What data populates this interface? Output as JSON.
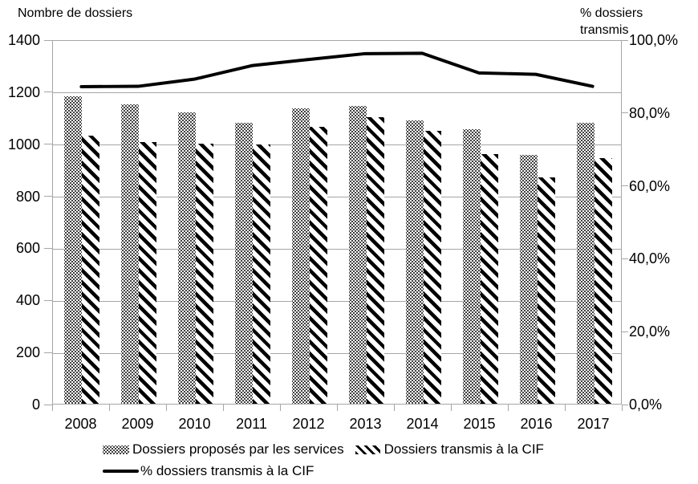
{
  "chart_data": {
    "type": "bar",
    "subtype": "combo-bar-line",
    "categories": [
      "2008",
      "2009",
      "2010",
      "2011",
      "2012",
      "2013",
      "2014",
      "2015",
      "2016",
      "2017"
    ],
    "series": [
      {
        "name": "Dossiers proposés par les services",
        "type": "bar",
        "axis": "left",
        "pattern": "dotted-black-on-white",
        "values": [
          1180,
          1150,
          1120,
          1080,
          1135,
          1145,
          1090,
          1055,
          955,
          1080
        ]
      },
      {
        "name": "Dossiers transmis à la CIF",
        "type": "bar",
        "axis": "left",
        "pattern": "diagonal-hatch-black-on-white",
        "values": [
          1030,
          1005,
          1000,
          995,
          1065,
          1100,
          1050,
          960,
          870,
          945
        ]
      },
      {
        "name": "% dossiers transmis à la CIF",
        "type": "line",
        "axis": "right",
        "color": "#000000",
        "values": [
          87.4,
          87.5,
          89.5,
          93.2,
          94.9,
          96.5,
          96.6,
          91.2,
          90.8,
          87.5
        ]
      }
    ],
    "left_axis": {
      "title": "Nombre de dossiers",
      "min": 0,
      "max": 1400,
      "step": 200,
      "tick_labels": [
        "1400",
        "1200",
        "1000",
        "800",
        "600",
        "400",
        "200",
        "0"
      ]
    },
    "right_axis": {
      "title_lines": [
        "% dossiers",
        "transmis"
      ],
      "min": 0,
      "max": 100,
      "step": 20,
      "tick_labels": [
        "100,0%",
        "80,0%",
        "60,0%",
        "40,0%",
        "20,0%",
        "0,0%"
      ]
    },
    "grid": true,
    "legend_position": "bottom",
    "colors": {
      "bars": "#000000",
      "line": "#000000",
      "gridline": "#a6a6a6",
      "background": "#ffffff"
    }
  }
}
